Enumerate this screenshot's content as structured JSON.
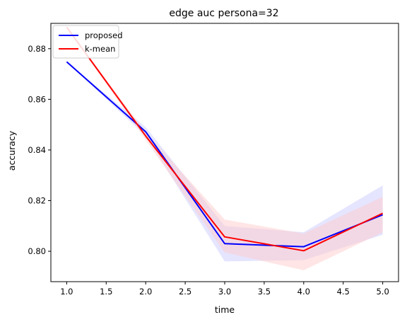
{
  "chart_data": {
    "type": "line",
    "title": "edge auc persona=32",
    "xlabel": "time",
    "ylabel": "accuracy",
    "xlim": [
      0.8,
      5.2
    ],
    "ylim": [
      0.788,
      0.89
    ],
    "xticks": [
      1.0,
      1.5,
      2.0,
      2.5,
      3.0,
      3.5,
      4.0,
      4.5,
      5.0
    ],
    "yticks": [
      0.8,
      0.82,
      0.84,
      0.86,
      0.88
    ],
    "legend_position": "top-left",
    "grid": false,
    "x": [
      1.0,
      2.0,
      3.0,
      4.0,
      5.0
    ],
    "series": [
      {
        "name": "proposed",
        "color": "#0000ff",
        "band_color": "#ccccff",
        "values": [
          0.8748,
          0.8472,
          0.803,
          0.8018,
          0.8144
        ],
        "lower": [
          0.8748,
          0.8455,
          0.796,
          0.7965,
          0.8065
        ],
        "upper": [
          0.8748,
          0.849,
          0.81,
          0.8075,
          0.826
        ]
      },
      {
        "name": "k-mean",
        "color": "#ff0000",
        "band_color": "#ffcccc",
        "values": [
          0.8885,
          0.8455,
          0.8057,
          0.8002,
          0.815
        ],
        "lower": [
          0.8885,
          0.844,
          0.7995,
          0.7925,
          0.8075
        ],
        "upper": [
          0.8885,
          0.847,
          0.8125,
          0.807,
          0.8215
        ]
      }
    ]
  }
}
